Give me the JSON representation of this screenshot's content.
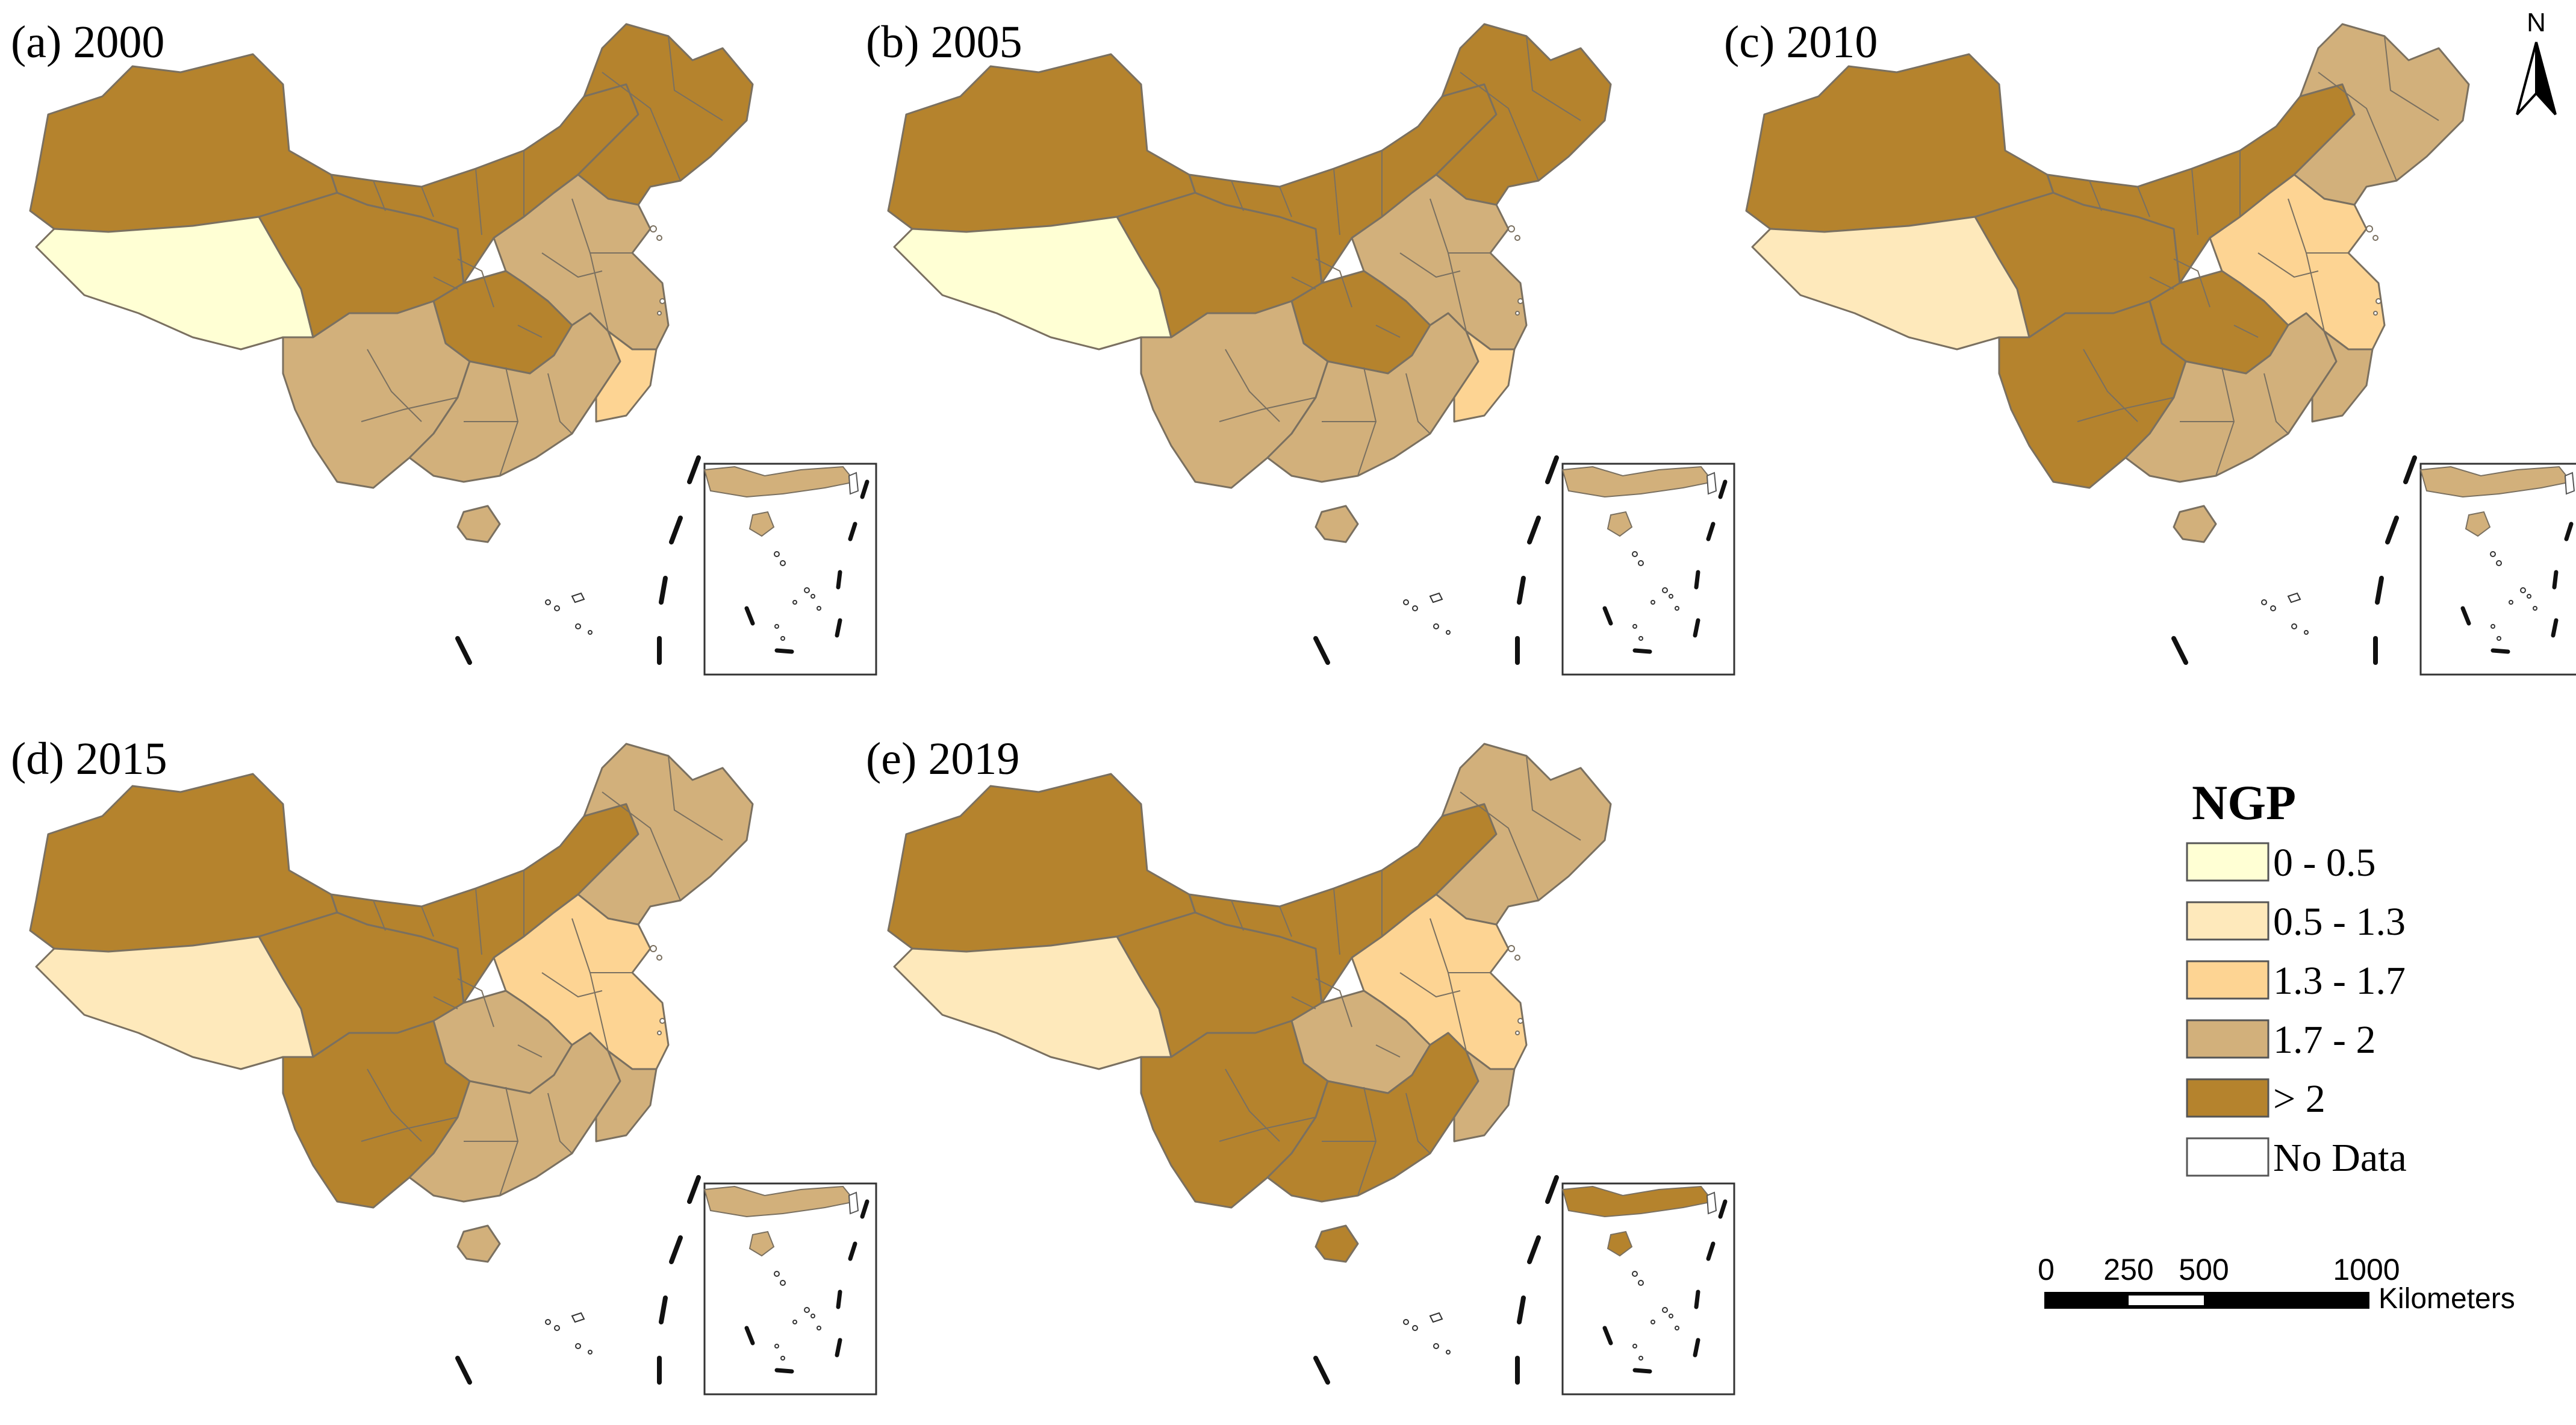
{
  "colors": {
    "class_0": "#ffffd4",
    "class_1": "#fee9bb",
    "class_2": "#fdd493",
    "class_3": "#d2b07b",
    "class_4": "#b5832d",
    "no_data": "#ffffff",
    "border": "#7a7060"
  },
  "panels": [
    {
      "label": "(a) 2000",
      "regions": {
        "xinjiang": 4,
        "tibet": 0,
        "qinghai": 4,
        "north": 4,
        "northeast": 4,
        "east": 3,
        "central": 4,
        "southwest": 3,
        "south": 3,
        "fujian": 2
      }
    },
    {
      "label": "(b) 2005",
      "regions": {
        "xinjiang": 4,
        "tibet": 0,
        "qinghai": 4,
        "north": 4,
        "northeast": 4,
        "east": 3,
        "central": 4,
        "southwest": 3,
        "south": 3,
        "fujian": 2
      }
    },
    {
      "label": "(c) 2010",
      "regions": {
        "xinjiang": 4,
        "tibet": 1,
        "qinghai": 4,
        "north": 4,
        "northeast": 3,
        "east": 2,
        "central": 4,
        "southwest": 4,
        "south": 3,
        "fujian": 3
      }
    },
    {
      "label": "(d) 2015",
      "regions": {
        "xinjiang": 4,
        "tibet": 1,
        "qinghai": 4,
        "north": 4,
        "northeast": 3,
        "east": 2,
        "central": 3,
        "southwest": 4,
        "south": 3,
        "fujian": 3
      }
    },
    {
      "label": "(e) 2019",
      "regions": {
        "xinjiang": 4,
        "tibet": 1,
        "qinghai": 4,
        "north": 4,
        "northeast": 3,
        "east": 2,
        "central": 3,
        "southwest": 4,
        "south": 4,
        "fujian": 3
      }
    }
  ],
  "legend": {
    "title": "NGP",
    "items": [
      {
        "label": "0 - 0.5",
        "class": 0
      },
      {
        "label": "0.5 - 1.3",
        "class": 1
      },
      {
        "label": "1.3 - 1.7",
        "class": 2
      },
      {
        "label": "1.7 - 2",
        "class": 3
      },
      {
        "label": "> 2",
        "class": 4
      },
      {
        "label": "No Data",
        "class": "no_data"
      }
    ]
  },
  "scale_bar": {
    "ticks": [
      "0",
      "250",
      "500",
      "1000"
    ],
    "unit": "Kilometers"
  },
  "north_arrow": {
    "label": "N",
    "icon": "north-arrow-icon"
  }
}
